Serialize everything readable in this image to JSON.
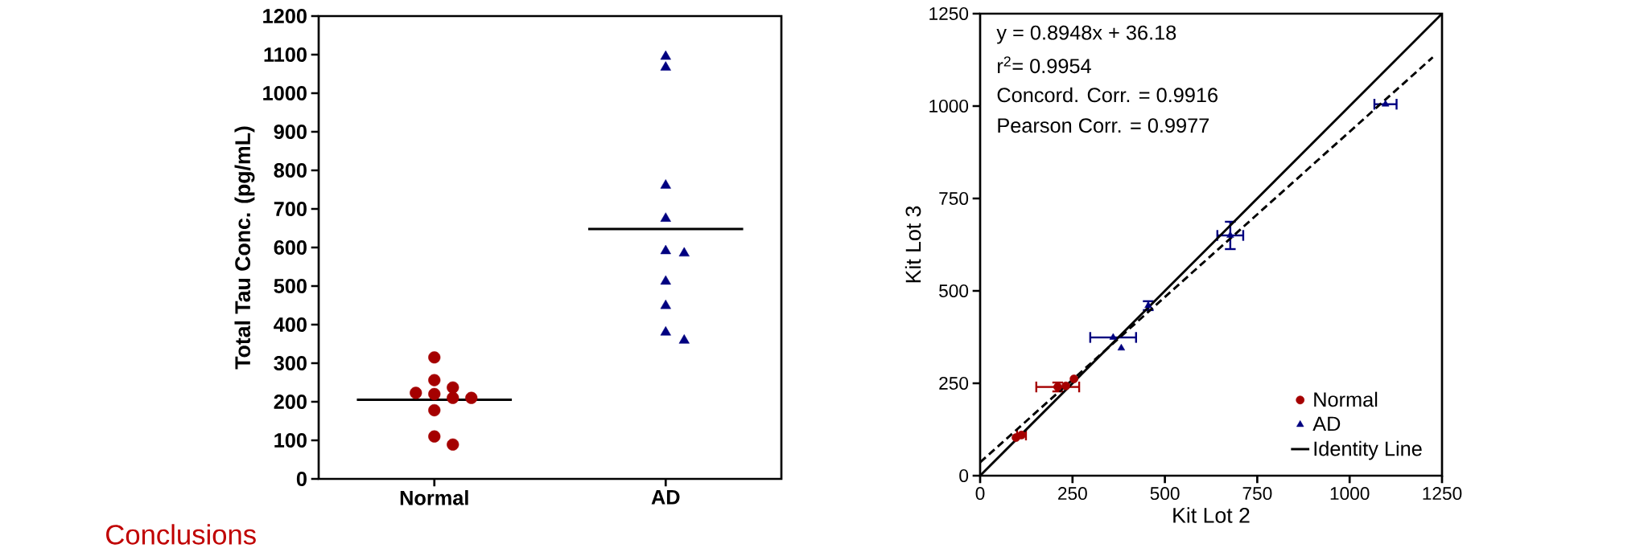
{
  "chart_data": [
    {
      "type": "scatter",
      "ylabel": "Total Tau Conc. (pg/mL)",
      "categories": [
        "Normal",
        "AD"
      ],
      "ylim": [
        0,
        1200
      ],
      "yticks": [
        0,
        100,
        200,
        300,
        400,
        500,
        600,
        700,
        800,
        900,
        1000,
        1100,
        1200
      ],
      "grid": false,
      "legend": false,
      "annotations": [
        "Conclusions"
      ],
      "ref_lines": [
        {
          "axis": "y",
          "value": 205,
          "color": "#000000"
        },
        {
          "axis": "y",
          "value": 648,
          "color": "#000000"
        }
      ],
      "series": [
        {
          "color": "#a50000",
          "marker": "circle",
          "x": [
            "Normal",
            "Normal",
            "Normal",
            "Normal",
            "Normal",
            "Normal",
            "Normal",
            "Normal",
            "Normal",
            "Normal"
          ],
          "values": [
            315,
            256,
            237,
            220,
            223,
            210,
            210,
            178,
            110,
            89
          ]
        },
        {
          "color": "#000080",
          "marker": "triangle",
          "x": [
            "AD",
            "AD",
            "AD",
            "AD",
            "AD",
            "AD",
            "AD",
            "AD",
            "AD",
            "AD"
          ],
          "values": [
            1095,
            1067,
            761,
            675,
            591,
            585,
            512,
            449,
            380,
            359
          ]
        }
      ]
    },
    {
      "type": "scatter",
      "xlabel": "Kit Lot 2",
      "ylabel": "Kit Lot 3",
      "xlim": [
        0,
        1250
      ],
      "xticks": [
        0,
        250,
        500,
        750,
        1000,
        1250
      ],
      "ylim": [
        0,
        1250
      ],
      "yticks": [
        0,
        250,
        500,
        750,
        1000,
        1250
      ],
      "grid": false,
      "legend": "bottom right",
      "annotations": [
        "y = 0.8948x + 36.18",
        "r$^{2}$= 0.9954",
        "Concord. Corr. = 0.9916",
        "Pearson Corr. = 0.9977"
      ],
      "series": [
        {
          "name": "Normal",
          "color": "#a50000",
          "marker": "circle",
          "x": [
            97,
            112,
            210,
            232,
            254
          ],
          "values": [
            103,
            110,
            240,
            243,
            262
          ],
          "xerrors": [
            null,
            12,
            58,
            null,
            null
          ],
          "errors": [
            null,
            null,
            12,
            null,
            null
          ]
        },
        {
          "name": "AD",
          "color": "#000080",
          "marker": "triangle",
          "x": [
            360,
            382,
            455,
            677,
            1097
          ],
          "values": [
            374,
            345,
            460,
            650,
            1005
          ],
          "xerrors": [
            62,
            null,
            null,
            35,
            30
          ],
          "errors": [
            null,
            null,
            12,
            37,
            null
          ]
        },
        {
          "name": "Identity Line",
          "type": "line",
          "color": "#000000",
          "line_style": "solid",
          "x": [
            0,
            1250
          ],
          "values": [
            0,
            1250
          ]
        },
        {
          "type": "line",
          "color": "#000000",
          "line_style": "dashed",
          "x": [
            0,
            1225
          ],
          "values": [
            36,
            1132
          ]
        }
      ]
    }
  ]
}
